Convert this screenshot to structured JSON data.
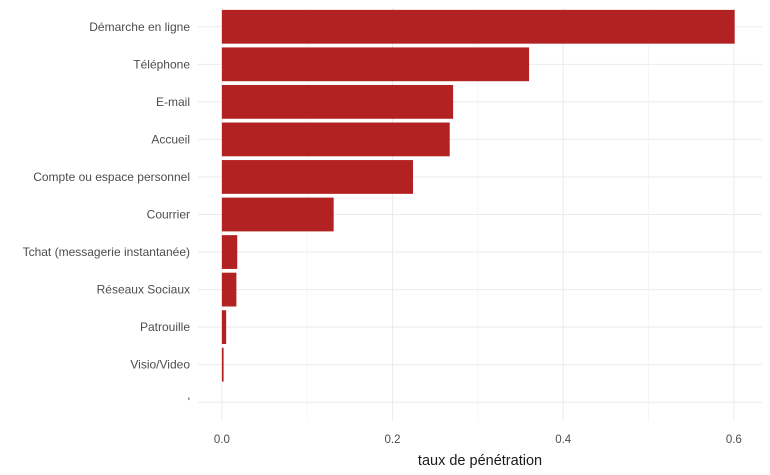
{
  "chart_data": {
    "type": "bar",
    "orientation": "horizontal",
    "categories": [
      "Démarche en ligne",
      "Téléphone",
      "E-mail",
      "Accueil",
      "Compte ou espace personnel",
      "Courrier",
      "Tchat (messagerie instantanée)",
      "Réseaux Sociaux",
      "Patrouille",
      "Visio/Video",
      "'"
    ],
    "values": [
      0.601,
      0.36,
      0.271,
      0.267,
      0.224,
      0.131,
      0.018,
      0.017,
      0.005,
      0.002,
      0
    ],
    "xlabel": "taux de pénétration",
    "ylabel": "",
    "xlim": [
      -0.028,
      0.633
    ],
    "xticks": [
      0.0,
      0.2,
      0.4,
      0.6
    ],
    "xtick_labels": [
      "0.0",
      "0.2",
      "0.4",
      "0.6"
    ],
    "bar_color": "#b22222",
    "grid": true,
    "legend": "none"
  }
}
